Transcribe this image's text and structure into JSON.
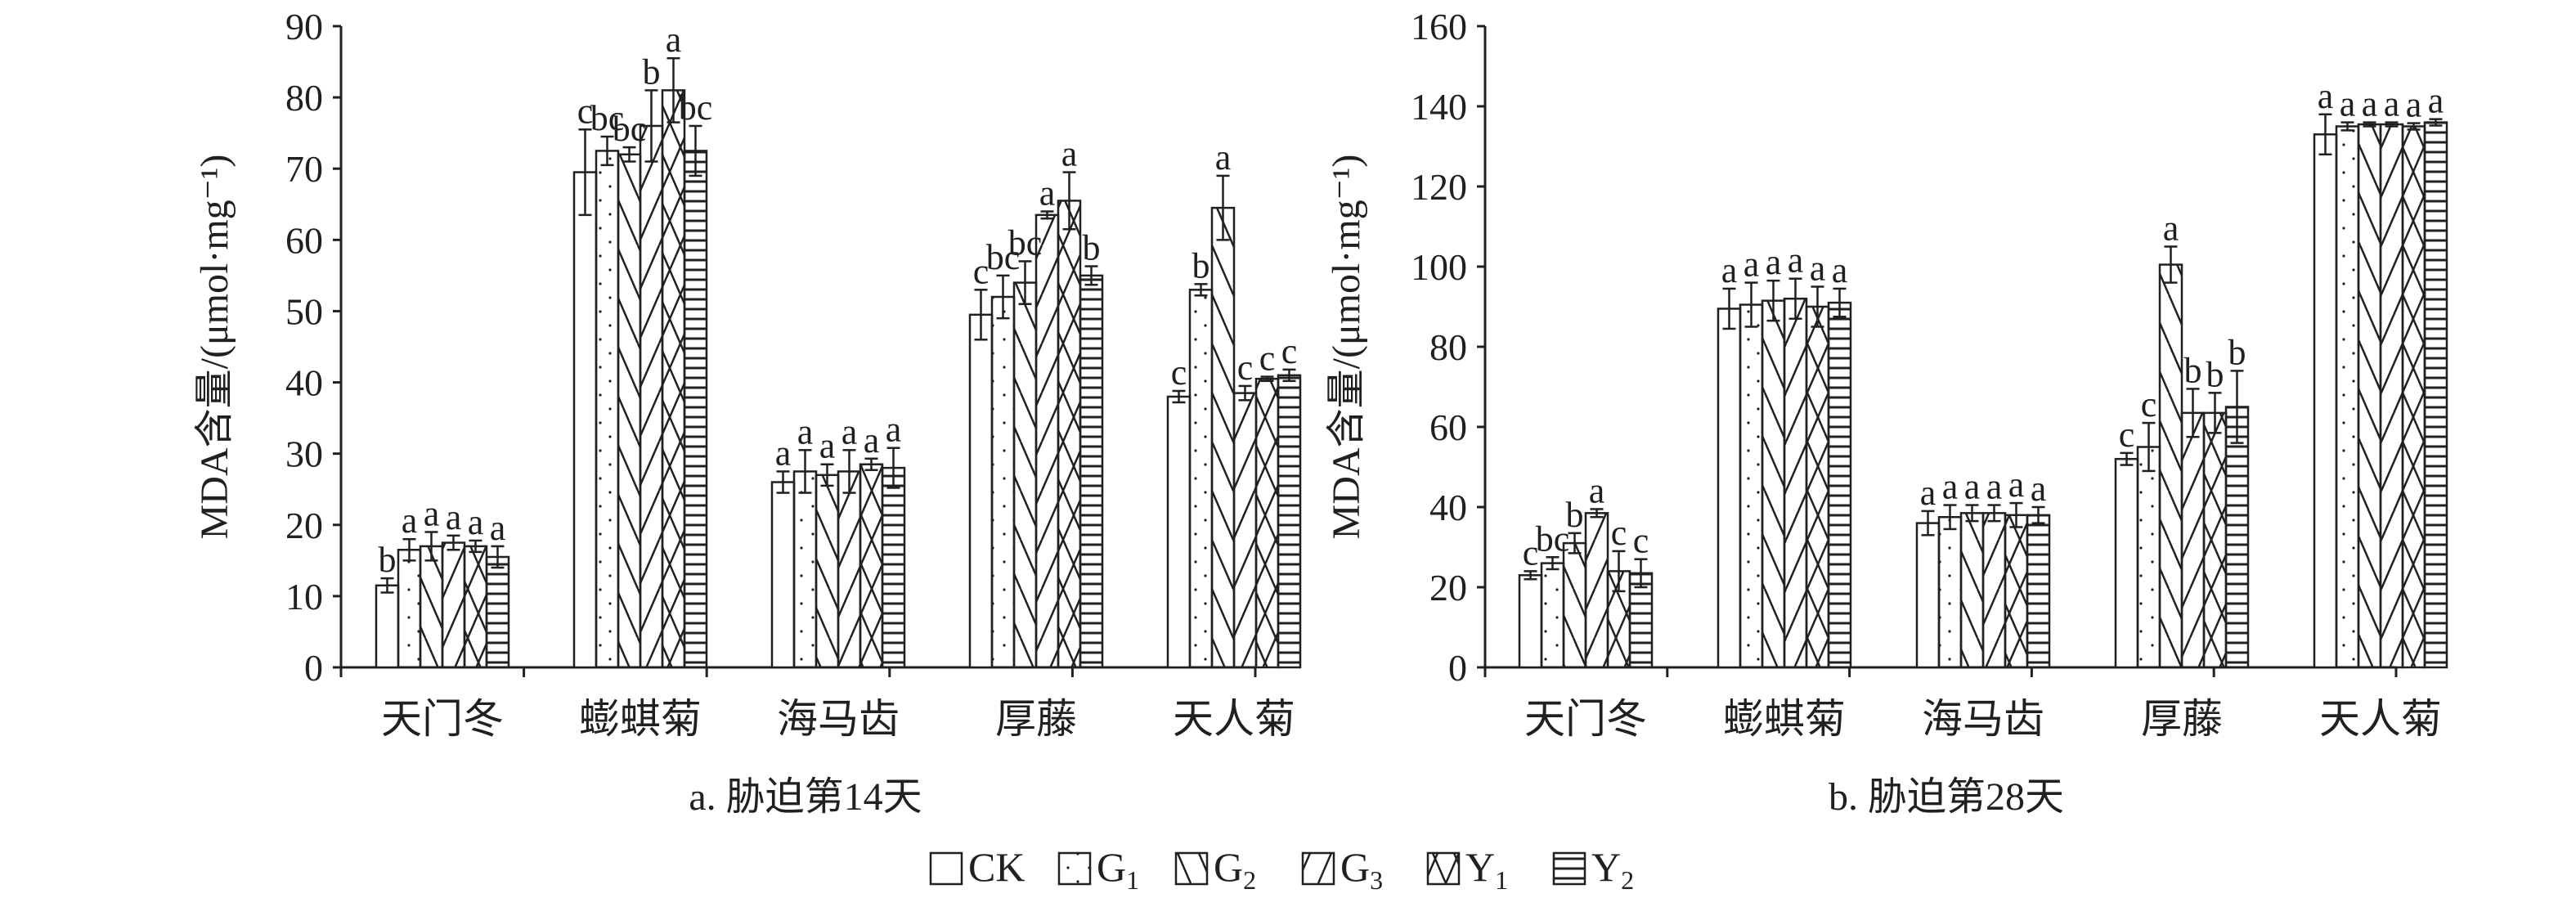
{
  "figure": {
    "legend": {
      "position": "bottom-center",
      "items": [
        {
          "key": "CK",
          "label": "CK",
          "sub": ""
        },
        {
          "key": "G1",
          "label": "G",
          "sub": "1"
        },
        {
          "key": "G2",
          "label": "G",
          "sub": "2"
        },
        {
          "key": "G3",
          "label": "G",
          "sub": "3"
        },
        {
          "key": "Y1",
          "label": "Y",
          "sub": "1"
        },
        {
          "key": "Y2",
          "label": "Y",
          "sub": "2"
        }
      ]
    }
  },
  "chart_data": [
    {
      "type": "bar",
      "caption": "a. 胁迫第14天",
      "ylabel": "MDA含量/(μmol·mg⁻¹)",
      "xlabel": "",
      "ylim": [
        0,
        90
      ],
      "yticks": [
        0,
        10,
        20,
        30,
        40,
        50,
        60,
        70,
        80,
        90
      ],
      "grid": false,
      "categories": [
        "天门冬",
        "蟛蜞菊",
        "海马齿",
        "厚藤",
        "天人菊"
      ],
      "series": [
        {
          "name": "CK",
          "values": [
            11.5,
            69.5,
            26.0,
            49.5,
            38.0
          ],
          "errors": [
            1.0,
            6.0,
            1.5,
            3.5,
            0.8
          ],
          "labels": [
            "b",
            "c",
            "a",
            "c",
            "c"
          ]
        },
        {
          "name": "G1",
          "values": [
            16.5,
            72.5,
            27.5,
            52.0,
            53.0
          ],
          "errors": [
            1.5,
            2.0,
            3.0,
            3.0,
            0.8
          ],
          "labels": [
            "a",
            "bc",
            "a",
            "bc",
            "b"
          ]
        },
        {
          "name": "G2",
          "values": [
            17.0,
            72.0,
            27.0,
            54.0,
            64.5
          ],
          "errors": [
            2.0,
            1.0,
            1.5,
            3.0,
            4.5
          ],
          "labels": [
            "a",
            "bc",
            "a",
            "bc",
            "a"
          ]
        },
        {
          "name": "G3",
          "values": [
            17.5,
            76.0,
            27.5,
            63.5,
            38.5
          ],
          "errors": [
            1.0,
            5.0,
            3.0,
            0.5,
            1.0
          ],
          "labels": [
            "a",
            "b",
            "a",
            "a",
            "c"
          ]
        },
        {
          "name": "Y1",
          "values": [
            17.0,
            81.0,
            28.5,
            65.5,
            40.5
          ],
          "errors": [
            0.8,
            4.5,
            0.8,
            4.0,
            0.3
          ],
          "labels": [
            "a",
            "a",
            "a",
            "a",
            "c"
          ]
        },
        {
          "name": "Y2",
          "values": [
            15.5,
            72.5,
            28.0,
            55.0,
            41.0
          ],
          "errors": [
            1.5,
            3.5,
            2.8,
            1.3,
            0.8
          ],
          "labels": [
            "a",
            "bc",
            "a",
            "b",
            "c"
          ]
        }
      ]
    },
    {
      "type": "bar",
      "caption": "b. 胁迫第28天",
      "ylabel": "MDA含量/(μmol·mg⁻¹)",
      "xlabel": "",
      "ylim": [
        0,
        160
      ],
      "yticks": [
        0,
        20,
        40,
        60,
        80,
        100,
        120,
        140,
        160
      ],
      "grid": false,
      "categories": [
        "天门冬",
        "蟛蜞菊",
        "海马齿",
        "厚藤",
        "天人菊"
      ],
      "series": [
        {
          "name": "CK",
          "values": [
            23.0,
            89.5,
            36.0,
            52.0,
            133.0
          ],
          "errors": [
            1.0,
            5.0,
            3.0,
            1.5,
            5.0
          ],
          "labels": [
            "c",
            "a",
            "a",
            "c",
            "a"
          ]
        },
        {
          "name": "G1",
          "values": [
            26.0,
            90.5,
            37.5,
            55.0,
            135.0
          ],
          "errors": [
            1.5,
            5.5,
            3.0,
            6.0,
            1.0
          ],
          "labels": [
            "bc",
            "a",
            "a",
            "c",
            "a"
          ]
        },
        {
          "name": "G2",
          "values": [
            31.0,
            91.5,
            38.5,
            100.5,
            135.5
          ],
          "errors": [
            2.5,
            5.0,
            2.0,
            4.5,
            0.5
          ],
          "labels": [
            "b",
            "a",
            "a",
            "a",
            "a"
          ]
        },
        {
          "name": "G3",
          "values": [
            38.5,
            92.0,
            38.5,
            63.5,
            135.5
          ],
          "errors": [
            1.0,
            5.0,
            2.0,
            6.0,
            0.5
          ],
          "labels": [
            "a",
            "a",
            "a",
            "b",
            "a"
          ]
        },
        {
          "name": "Y1",
          "values": [
            24.0,
            90.0,
            38.0,
            63.5,
            135.0
          ],
          "errors": [
            5.0,
            5.0,
            3.0,
            5.0,
            0.8
          ],
          "labels": [
            "c",
            "a",
            "a",
            "b",
            "a"
          ]
        },
        {
          "name": "Y2",
          "values": [
            23.5,
            91.0,
            38.0,
            65.0,
            136.0
          ],
          "errors": [
            3.5,
            3.5,
            2.0,
            9.0,
            0.8
          ],
          "labels": [
            "c",
            "a",
            "a",
            "b",
            "a"
          ]
        }
      ]
    }
  ]
}
